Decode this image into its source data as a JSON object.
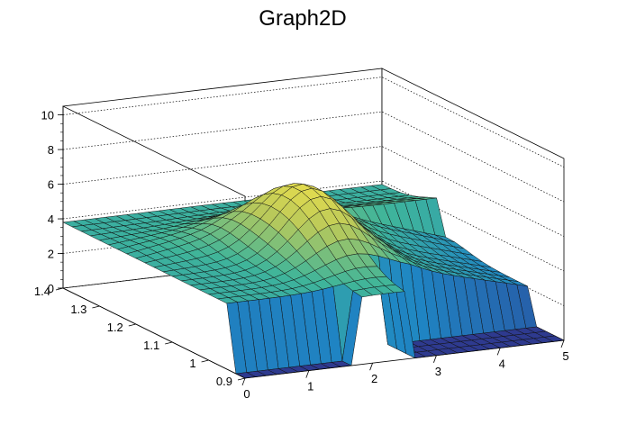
{
  "chart_data": {
    "type": "surface3d",
    "title": "Graph2D",
    "xlabel": "",
    "ylabel": "",
    "zlabel": "",
    "xlim": [
      0,
      5
    ],
    "ylim": [
      0.9,
      1.4
    ],
    "zlim": [
      0,
      10.5
    ],
    "x_ticks": [
      "0",
      "1",
      "2",
      "3",
      "4",
      "5"
    ],
    "y_ticks": [
      "0.9",
      "1",
      "1.1",
      "1.2",
      "1.3",
      "1.4"
    ],
    "z_ticks": [
      "0",
      "2",
      "4",
      "6",
      "8",
      "10"
    ],
    "grid": true,
    "colormap": "viridis-like",
    "colors": {
      "low": "#2e3a8f",
      "mid_low": "#1f86c4",
      "mid": "#3fb59a",
      "mid_high": "#b9c95a",
      "high": "#f2e24a"
    },
    "surface_notes": "z=0 floor for x<1.8 at y<0.92 and for x>2.6 at y<1.0; plateau z~4-6 elsewhere with peak ~7.9 near x~2.2, y~1.1"
  }
}
